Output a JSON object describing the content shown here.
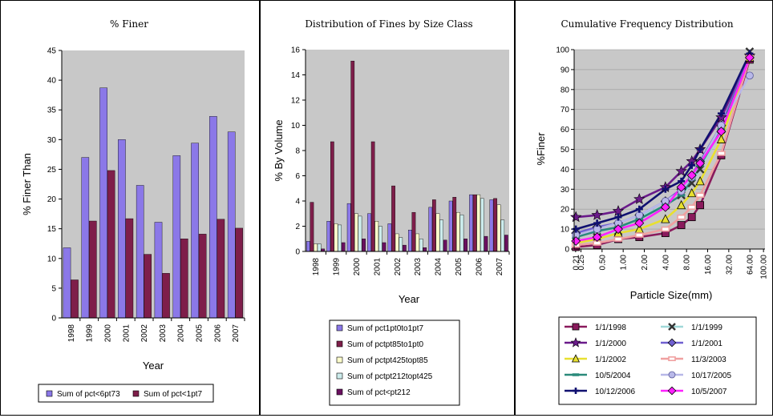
{
  "chart_data": [
    {
      "type": "bar",
      "title": "% Finer",
      "xlabel": "Year",
      "ylabel": "% Finer Than",
      "ylim": [
        0,
        45
      ],
      "yticks": [
        "0",
        "5",
        "10",
        "15",
        "20",
        "25",
        "30",
        "35",
        "40",
        "45"
      ],
      "categories": [
        "1998",
        "1999",
        "2000",
        "2001",
        "2002",
        "2003",
        "2004",
        "2005",
        "2006",
        "2007"
      ],
      "series": [
        {
          "name": "Sum of pct<6pt73",
          "color": "#8b78e8",
          "values": [
            11.8,
            27.0,
            38.7,
            30.0,
            22.3,
            16.1,
            27.3,
            29.4,
            33.9,
            31.3
          ]
        },
        {
          "name": "Sum of pct<1pt7",
          "color": "#7e1e4a",
          "values": [
            6.4,
            16.3,
            24.8,
            16.7,
            10.7,
            7.5,
            13.3,
            14.1,
            16.6,
            15.1
          ]
        }
      ],
      "grid": false,
      "legend_position": "bottom"
    },
    {
      "type": "bar",
      "title": "Distribution of Fines by Size Class",
      "xlabel": "Year",
      "ylabel": "% By Volume",
      "ylim": [
        0,
        16
      ],
      "yticks": [
        "0",
        "2",
        "4",
        "6",
        "8",
        "10",
        "12",
        "14",
        "16"
      ],
      "categories": [
        "1998",
        "1999",
        "2000",
        "2001",
        "2002",
        "2003",
        "2004",
        "2005",
        "2006",
        "2007"
      ],
      "series": [
        {
          "name": "Sum of pct1pt0to1pt7",
          "color": "#8b78e8",
          "values": [
            0.8,
            2.4,
            3.8,
            3.0,
            2.2,
            1.7,
            3.5,
            4.0,
            4.5,
            4.1
          ]
        },
        {
          "name": "Sum of pctpt85to1pt0",
          "color": "#7e1e4a",
          "values": [
            3.9,
            8.7,
            15.1,
            8.7,
            5.2,
            3.1,
            4.1,
            4.3,
            4.5,
            4.2
          ]
        },
        {
          "name": "Sum of pctpt425topt85",
          "color": "#ffffcc",
          "values": [
            0.6,
            2.2,
            3.0,
            2.4,
            1.4,
            1.4,
            3.0,
            3.1,
            4.5,
            3.7
          ]
        },
        {
          "name": "Sum of pctpt212topt425",
          "color": "#ccecec",
          "values": [
            0.6,
            2.1,
            2.8,
            2.0,
            1.1,
            1.0,
            2.5,
            2.9,
            4.2,
            2.5
          ]
        },
        {
          "name": "Sum of pct<pt212",
          "color": "#6a1060",
          "values": [
            0.2,
            0.7,
            1.0,
            0.7,
            0.5,
            0.3,
            0.9,
            1.0,
            1.2,
            1.3
          ]
        }
      ],
      "grid": false,
      "legend_position": "bottom"
    },
    {
      "type": "line",
      "title": "Cumulative Frequency Distribution",
      "xlabel": "Particle Size(mm)",
      "ylabel": "%Finer",
      "x_scale": "log",
      "ylim": [
        0,
        100
      ],
      "yticks": [
        "0",
        "10",
        "20",
        "30",
        "40",
        "50",
        "60",
        "70",
        "80",
        "90",
        "100"
      ],
      "xticks": [
        "0.21",
        "0.25",
        "0.50",
        "1.00",
        "2.00",
        "4.00",
        "8.00",
        "16.00",
        "32.00",
        "64.00",
        "100.00"
      ],
      "x": [
        0.212,
        0.425,
        0.85,
        1.7,
        4.0,
        6.73,
        9.5,
        12.5,
        25.0,
        63.5
      ],
      "series": [
        {
          "name": "1/1/1998",
          "color": "#8a1a5c",
          "marker": "square",
          "values": [
            1,
            2,
            5,
            6,
            8,
            12,
            16,
            22,
            47,
            95
          ]
        },
        {
          "name": "1/1/1999",
          "color": "#a0d8d8",
          "marker": "x",
          "values": [
            4,
            6,
            9,
            16,
            22,
            27,
            33,
            40,
            60,
            99
          ]
        },
        {
          "name": "1/1/2000",
          "color": "#6a1a8a",
          "marker": "star",
          "values": [
            16,
            17,
            19,
            25,
            31,
            39,
            44,
            50,
            66,
            97
          ]
        },
        {
          "name": "1/1/2001",
          "color": "#7060d0",
          "marker": "diamond",
          "values": [
            8,
            11,
            13,
            17,
            24,
            30,
            37,
            44,
            62,
            97
          ]
        },
        {
          "name": "1/1/2002",
          "color": "#e8e030",
          "marker": "triangle",
          "values": [
            3,
            5,
            8,
            10,
            15,
            22,
            28,
            34,
            55,
            96
          ]
        },
        {
          "name": "11/3/2003",
          "color": "#f0a0a0",
          "marker": "rect",
          "values": [
            2,
            3,
            5,
            7,
            10,
            16,
            21,
            27,
            48,
            96
          ]
        },
        {
          "name": "10/5/2004",
          "color": "#2a8a7a",
          "marker": "dash",
          "values": [
            6,
            9,
            11,
            15,
            22,
            27,
            35,
            42,
            60,
            96
          ]
        },
        {
          "name": "10/17/2005",
          "color": "#b8b8e8",
          "marker": "circle",
          "values": [
            7,
            10,
            13,
            17,
            24,
            29,
            36,
            43,
            62,
            87
          ]
        },
        {
          "name": "10/12/2006",
          "color": "#101070",
          "marker": "plus",
          "values": [
            10,
            13,
            16,
            20,
            30,
            34,
            42,
            50,
            68,
            98
          ]
        },
        {
          "name": "10/5/2007",
          "color": "#ff20ff",
          "marker": "diamond",
          "values": [
            4,
            6,
            10,
            13,
            21,
            31,
            37,
            43,
            59,
            96
          ]
        }
      ],
      "grid": true,
      "legend_position": "bottom"
    }
  ]
}
